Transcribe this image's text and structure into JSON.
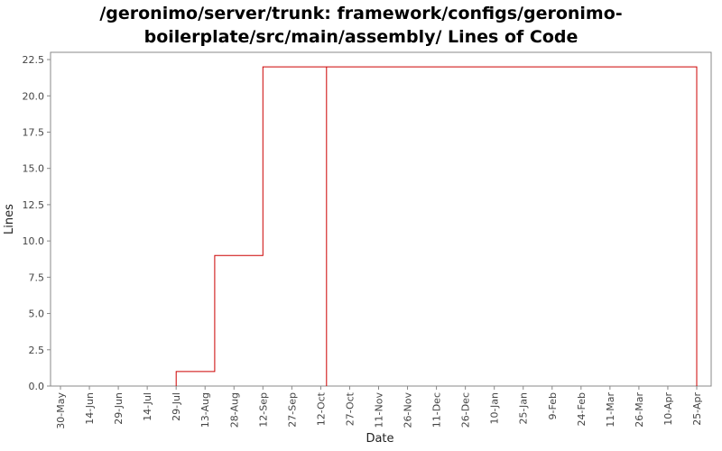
{
  "chart_data": {
    "type": "line",
    "title_line1": "/geronimo/server/trunk: framework/configs/geronimo-",
    "title_line2": "boilerplate/src/main/assembly/ Lines of Code",
    "xlabel": "Date",
    "ylabel": "Lines",
    "ylim": [
      0,
      23
    ],
    "y_ticks": [
      0.0,
      2.5,
      5.0,
      7.5,
      10.0,
      12.5,
      15.0,
      17.5,
      20.0,
      22.5
    ],
    "x_ticks": [
      "30-May",
      "14-Jun",
      "29-Jun",
      "14-Jul",
      "29-Jul",
      "13-Aug",
      "28-Aug",
      "12-Sep",
      "27-Sep",
      "12-Oct",
      "27-Oct",
      "11-Nov",
      "26-Nov",
      "11-Dec",
      "26-Dec",
      "10-Jan",
      "25-Jan",
      "9-Feb",
      "24-Feb",
      "11-Mar",
      "26-Mar",
      "10-Apr",
      "25-Apr"
    ],
    "series": [
      {
        "color": "#cc0000",
        "step": true,
        "points": [
          {
            "x": "29-Jul",
            "y": 0
          },
          {
            "x": "29-Jul",
            "y": 1
          },
          {
            "x": "18-Aug",
            "y": 1
          },
          {
            "x": "18-Aug",
            "y": 9
          },
          {
            "x": "12-Sep",
            "y": 9
          },
          {
            "x": "12-Sep",
            "y": 22
          },
          {
            "x": "15-Oct",
            "y": 22
          },
          {
            "x": "15-Oct",
            "y": 0
          },
          {
            "x": "15-Oct",
            "y": 22
          },
          {
            "x": "25-Apr",
            "y": 22
          },
          {
            "x": "25-Apr",
            "y": 0
          }
        ]
      }
    ],
    "grid": false,
    "legend": false
  }
}
